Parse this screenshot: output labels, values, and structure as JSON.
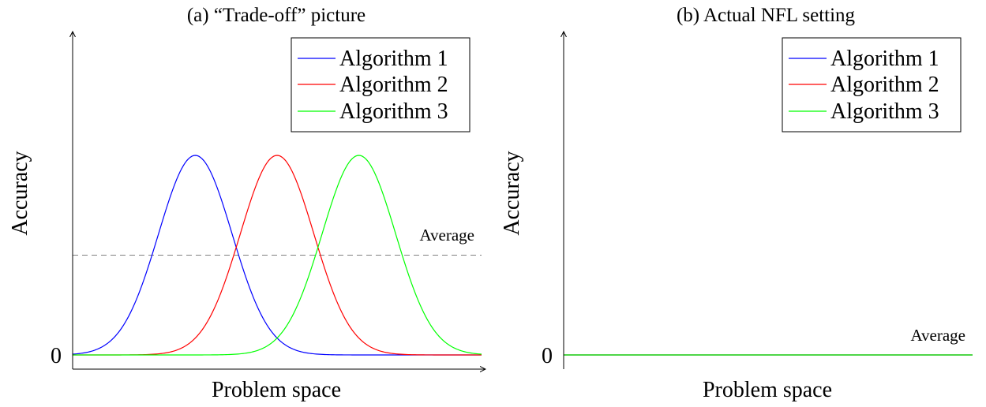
{
  "colors": {
    "algorithm_1": "#0000ff",
    "algorithm_2": "#ff0000",
    "algorithm_3": "#00ff00",
    "average_line": "#808080"
  },
  "chart_data": [
    {
      "type": "line",
      "title": "(a) “Trade-off” picture",
      "xlabel": "Problem space",
      "ylabel": "Accuracy",
      "yticks": [
        "0"
      ],
      "xlim": [
        0,
        10
      ],
      "ylim": [
        0,
        1.3
      ],
      "legend_position": "top-right",
      "series": [
        {
          "name": "Algorithm 1",
          "color": "#0000ff",
          "shape": "gaussian",
          "mu": 3,
          "sigma": 0.9,
          "amplitude": 1.0
        },
        {
          "name": "Algorithm 2",
          "color": "#ff0000",
          "shape": "gaussian",
          "mu": 5,
          "sigma": 0.9,
          "amplitude": 1.0
        },
        {
          "name": "Algorithm 3",
          "color": "#00ff00",
          "shape": "gaussian",
          "mu": 7,
          "sigma": 0.9,
          "amplitude": 1.0
        }
      ],
      "average": {
        "label": "Average",
        "value": 0.5,
        "style": "dashed"
      }
    },
    {
      "type": "line",
      "title": "(b) Actual NFL setting",
      "xlabel": "Problem space",
      "ylabel": "Accuracy",
      "yticks": [
        "0"
      ],
      "xlim": [
        0,
        10
      ],
      "ylim": [
        0,
        1.3
      ],
      "legend_position": "top-right",
      "series": [
        {
          "name": "Algorithm 1",
          "color": "#0000ff",
          "shape": "constant",
          "value": 0
        },
        {
          "name": "Algorithm 2",
          "color": "#ff0000",
          "shape": "constant",
          "value": 0
        },
        {
          "name": "Algorithm 3",
          "color": "#00ff00",
          "shape": "constant",
          "value": 0
        }
      ],
      "average": {
        "label": "Average",
        "value": 0,
        "style": "solid"
      }
    }
  ]
}
